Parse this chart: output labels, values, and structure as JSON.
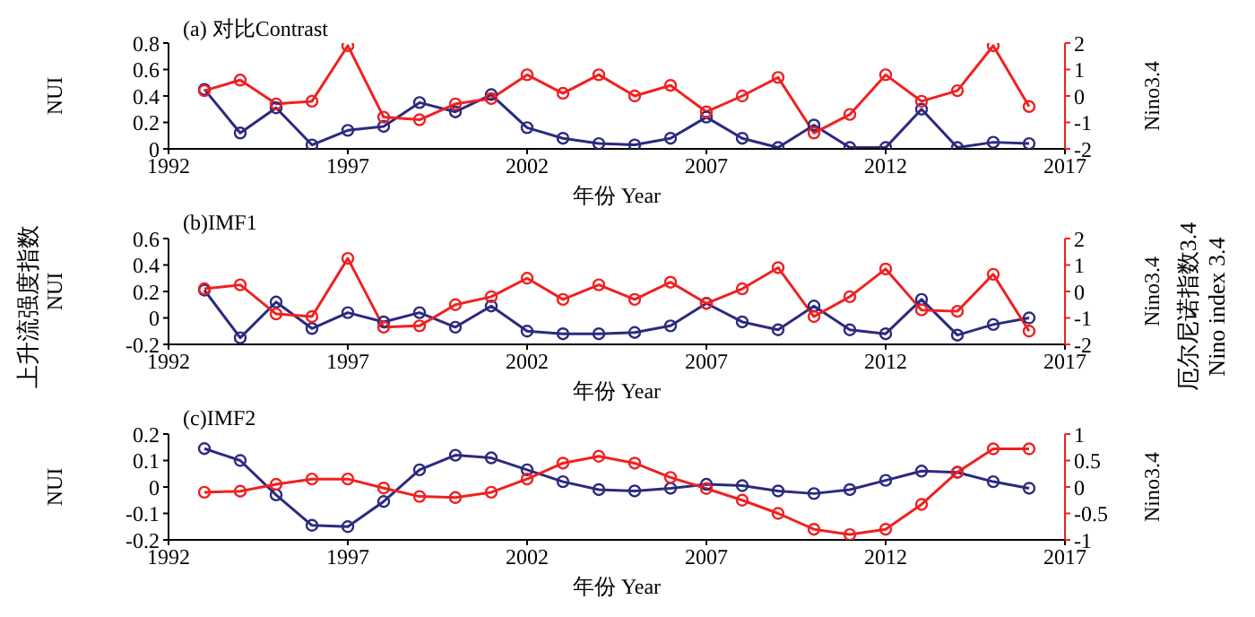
{
  "chart_data": [
    {
      "type": "line",
      "title": "(a) 对比Contrast",
      "xlabel": "年份 Year",
      "ylabel": "NUI",
      "y2label": "Nino3.4",
      "marker": "circle",
      "legend": false,
      "grid": false,
      "x": [
        1993,
        1994,
        1995,
        1996,
        1997,
        1998,
        1999,
        2000,
        2001,
        2002,
        2003,
        2004,
        2005,
        2006,
        2007,
        2008,
        2009,
        2010,
        2011,
        2012,
        2013,
        2014,
        2015,
        2016
      ],
      "xlim": [
        1992,
        2017
      ],
      "xticks": [
        1992,
        1997,
        2002,
        2007,
        2012,
        2017
      ],
      "ylim": [
        0,
        0.8
      ],
      "yticks": [
        0,
        0.2,
        0.4,
        0.6,
        0.8
      ],
      "y2lim": [
        -2,
        2
      ],
      "y2ticks": [
        -2,
        -1,
        0,
        1,
        2
      ],
      "series": [
        {
          "color": "#2b2a80",
          "values": [
            0.45,
            0.12,
            0.31,
            0.03,
            0.14,
            0.17,
            0.35,
            0.28,
            0.41,
            0.16,
            0.08,
            0.04,
            0.03,
            0.08,
            0.24,
            0.08,
            0.01,
            0.18,
            0.01,
            0.01,
            0.3,
            0.01,
            0.05,
            0.04
          ]
        },
        {
          "color": "#f02020",
          "axis": "y2",
          "values": [
            0.2,
            0.6,
            -0.3,
            -0.2,
            1.9,
            -0.8,
            -0.9,
            -0.3,
            -0.1,
            0.8,
            0.1,
            0.8,
            0.0,
            0.4,
            -0.6,
            0.0,
            0.7,
            -1.4,
            -0.7,
            0.8,
            -0.2,
            0.2,
            1.9,
            -0.4
          ]
        }
      ]
    },
    {
      "type": "line",
      "title": "(b)IMF1",
      "xlabel": "年份 Year",
      "ylabel": "NUI",
      "y2label": "Nino3.4",
      "marker": "circle",
      "legend": false,
      "grid": false,
      "annotations": [
        "上升流强度指数",
        "厄尔尼诺指数3.4",
        "Nino index 3.4"
      ],
      "x": [
        1993,
        1994,
        1995,
        1996,
        1997,
        1998,
        1999,
        2000,
        2001,
        2002,
        2003,
        2004,
        2005,
        2006,
        2007,
        2008,
        2009,
        2010,
        2011,
        2012,
        2013,
        2014,
        2015,
        2016
      ],
      "xlim": [
        1992,
        2017
      ],
      "xticks": [
        1992,
        1997,
        2002,
        2007,
        2012,
        2017
      ],
      "ylim": [
        -0.2,
        0.6
      ],
      "yticks": [
        -0.2,
        0,
        0.2,
        0.4,
        0.6
      ],
      "y2lim": [
        -2,
        2
      ],
      "y2ticks": [
        -2,
        -1,
        0,
        1,
        2
      ],
      "series": [
        {
          "color": "#2b2a80",
          "values": [
            0.21,
            -0.15,
            0.12,
            -0.08,
            0.04,
            -0.03,
            0.04,
            -0.07,
            0.09,
            -0.1,
            -0.12,
            -0.12,
            -0.11,
            -0.06,
            0.11,
            -0.03,
            -0.09,
            0.09,
            -0.09,
            -0.12,
            0.14,
            -0.13,
            -0.05,
            0.0
          ]
        },
        {
          "color": "#f02020",
          "axis": "y2",
          "values": [
            0.1,
            0.25,
            -0.85,
            -0.95,
            1.25,
            -1.35,
            -1.3,
            -0.5,
            -0.2,
            0.5,
            -0.3,
            0.25,
            -0.3,
            0.35,
            -0.45,
            0.1,
            0.9,
            -0.95,
            -0.2,
            0.85,
            -0.7,
            -0.75,
            0.65,
            -1.5
          ]
        }
      ]
    },
    {
      "type": "line",
      "title": "(c)IMF2",
      "xlabel": "年份 Year",
      "ylabel": "NUI",
      "y2label": "Nino3.4",
      "marker": "circle",
      "legend": false,
      "grid": false,
      "x": [
        1993,
        1994,
        1995,
        1996,
        1997,
        1998,
        1999,
        2000,
        2001,
        2002,
        2003,
        2004,
        2005,
        2006,
        2007,
        2008,
        2009,
        2010,
        2011,
        2012,
        2013,
        2014,
        2015,
        2016
      ],
      "xlim": [
        1992,
        2017
      ],
      "xticks": [
        1992,
        1997,
        2002,
        2007,
        2012,
        2017
      ],
      "ylim": [
        -0.2,
        0.2
      ],
      "yticks": [
        -0.2,
        -0.1,
        0,
        0.1,
        0.2
      ],
      "y2lim": [
        -1,
        1
      ],
      "y2ticks": [
        -1,
        -0.5,
        0,
        0.5,
        1
      ],
      "series": [
        {
          "color": "#2b2a80",
          "values": [
            0.145,
            0.1,
            -0.03,
            -0.145,
            -0.15,
            -0.055,
            0.065,
            0.12,
            0.11,
            0.065,
            0.02,
            -0.01,
            -0.015,
            -0.005,
            0.01,
            0.005,
            -0.015,
            -0.025,
            -0.01,
            0.025,
            0.06,
            0.055,
            0.02,
            -0.005
          ]
        },
        {
          "color": "#f02020",
          "axis": "y2",
          "values": [
            -0.1,
            -0.08,
            0.05,
            0.15,
            0.15,
            -0.02,
            -0.18,
            -0.2,
            -0.1,
            0.15,
            0.45,
            0.58,
            0.45,
            0.18,
            -0.03,
            -0.25,
            -0.5,
            -0.8,
            -0.9,
            -0.8,
            -0.33,
            0.28,
            0.72,
            0.72
          ]
        }
      ]
    }
  ]
}
